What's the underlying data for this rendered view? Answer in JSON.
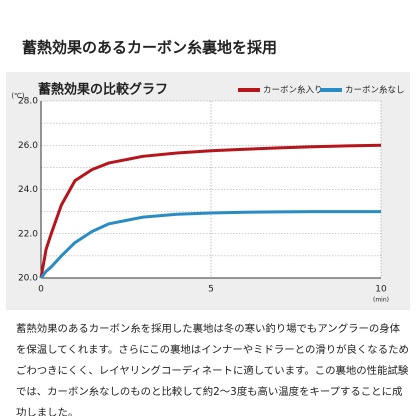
{
  "header": {
    "title": "蓄熱効果のあるカーボン糸裏地を採用"
  },
  "chart_data": {
    "type": "line",
    "title": "蓄熱効果の比較グラフ",
    "x_unit": "(min)",
    "y_unit": "(℃)",
    "x": [
      0,
      0.15,
      0.3,
      0.6,
      1,
      1.5,
      2,
      3,
      4,
      5,
      6,
      7,
      8,
      9,
      10
    ],
    "series": [
      {
        "name": "カーボン糸入り",
        "color": "#b5151b",
        "values": [
          20,
          21.3,
          22.0,
          23.3,
          24.4,
          24.9,
          25.2,
          25.5,
          25.65,
          25.75,
          25.82,
          25.88,
          25.93,
          25.97,
          26.0
        ]
      },
      {
        "name": "カーボン糸なし",
        "color": "#2a8cc4",
        "values": [
          20,
          20.3,
          20.5,
          21.0,
          21.6,
          22.1,
          22.45,
          22.75,
          22.88,
          22.94,
          22.97,
          22.99,
          23.0,
          23.0,
          23.0
        ]
      }
    ],
    "xlim": [
      0,
      10
    ],
    "xticks": [
      0,
      5,
      10
    ],
    "ylim": [
      20,
      28
    ],
    "yticks": [
      {
        "value": 20,
        "label": "20.0"
      },
      {
        "value": 22,
        "label": "22.0"
      },
      {
        "value": 24,
        "label": "24.0"
      },
      {
        "value": 26,
        "label": "26.0"
      },
      {
        "value": 28,
        "label": "28.0"
      }
    ],
    "minor_yticks": [
      21,
      23,
      25,
      27
    ],
    "grid": true,
    "legend": "top-right"
  },
  "body": {
    "lines": [
      "蓄熱効果のあるカーボン糸を採用した裏地は冬の寒い釣り場でもアングラーの身体",
      "を保温してくれます。さらにこの裏地はインナーやミドラーとの滑りが良くなるため",
      "ごわつきにくく、レイヤリングコーディネートに適しています。この裏地の性能試験",
      "では、カーボン糸なしのものと比較して約2～3度も高い温度をキープすることに成",
      "功しました。"
    ]
  }
}
